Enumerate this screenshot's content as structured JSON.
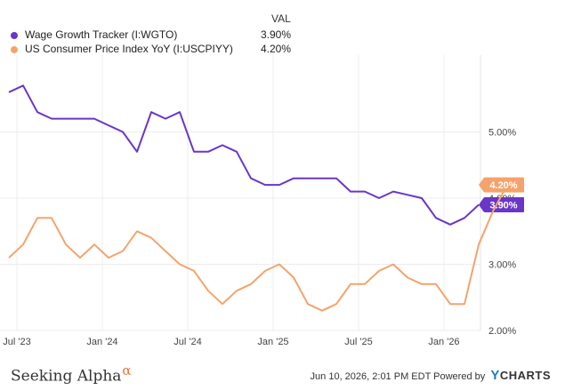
{
  "legend": {
    "header": "VAL",
    "items": [
      {
        "name": "Wage Growth Tracker (I:WGTO)",
        "value": "3.90%",
        "color": "#6a35c9"
      },
      {
        "name": "US Consumer Price Index YoY (I:USCPIYY)",
        "value": "4.20%",
        "color": "#f5a36c"
      }
    ]
  },
  "chart_data": {
    "type": "line",
    "x_tick_labels": [
      "Jul '23",
      "Jan '24",
      "Jul '24",
      "Jan '25",
      "Jul '25",
      "Jan '26"
    ],
    "y_tick_labels": [
      "2.00%",
      "3.00%",
      "4.00%",
      "5.00%"
    ],
    "ylim": [
      2.0,
      6.0
    ],
    "grid": true,
    "series": [
      {
        "name": "Wage Growth Tracker (I:WGTO)",
        "color": "#6a35c9",
        "end_label": "3.90%",
        "values": [
          5.6,
          5.7,
          5.3,
          5.2,
          5.2,
          5.2,
          5.2,
          5.1,
          5.0,
          4.7,
          5.3,
          5.2,
          5.3,
          4.7,
          4.7,
          4.8,
          4.7,
          4.3,
          4.2,
          4.2,
          4.3,
          4.3,
          4.3,
          4.3,
          4.1,
          4.1,
          4.0,
          4.1,
          4.05,
          4.0,
          3.7,
          3.6,
          3.7,
          3.9
        ]
      },
      {
        "name": "US Consumer Price Index YoY (I:USCPIYY)",
        "color": "#f5a36c",
        "end_label": "4.20%",
        "values": [
          3.1,
          3.3,
          3.7,
          3.7,
          3.3,
          3.1,
          3.3,
          3.1,
          3.2,
          3.5,
          3.4,
          3.2,
          3.0,
          2.9,
          2.6,
          2.4,
          2.6,
          2.7,
          2.9,
          3.0,
          2.8,
          2.4,
          2.3,
          2.4,
          2.7,
          2.7,
          2.9,
          3.0,
          2.8,
          2.7,
          2.7,
          2.4,
          2.4,
          3.3,
          3.8,
          4.2
        ]
      }
    ]
  },
  "footer": {
    "brand": "Seeking Alpha",
    "brand_mark": "α",
    "timestamp": "Jun 10, 2026, 2:01 PM EDT Powered by",
    "ycharts_y": "Y",
    "ycharts_rest": "CHARTS"
  }
}
